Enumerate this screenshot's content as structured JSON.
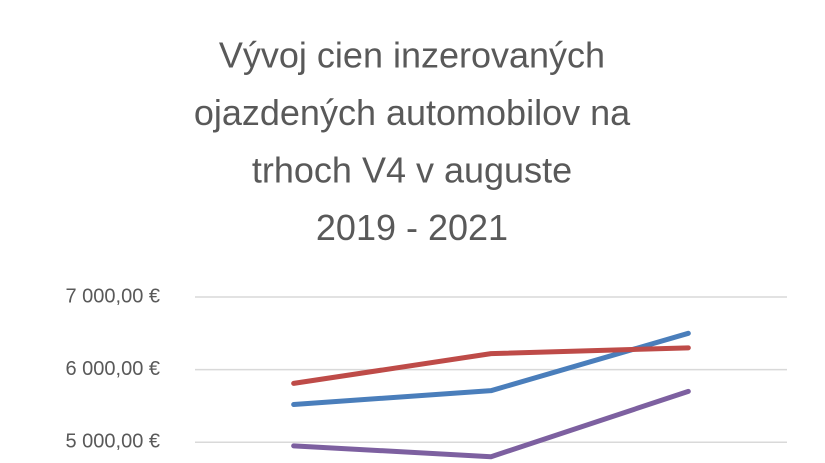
{
  "chart_data": {
    "type": "line",
    "title": [
      "Vývoj cien inzerovaných",
      "ojazdených automobilov na",
      "trhoch V4 v auguste",
      "2019 - 2021"
    ],
    "categories": [
      null,
      null,
      null
    ],
    "series": [
      {
        "color": "#4a7ebb",
        "values": [
          5520,
          5710,
          6500
        ]
      },
      {
        "color": "#be4b48",
        "values": [
          5810,
          6220,
          6300
        ]
      },
      {
        "color": "#7d60a0",
        "values": [
          4950,
          4800,
          5700
        ]
      }
    ],
    "ylim": [
      4700,
      7000
    ],
    "yticks": [
      {
        "value": 5000,
        "label": "5 000,00 €"
      },
      {
        "value": 6000,
        "label": "6 000,00 €"
      },
      {
        "value": 7000,
        "label": "7 000,00 €"
      }
    ],
    "grid": true
  }
}
